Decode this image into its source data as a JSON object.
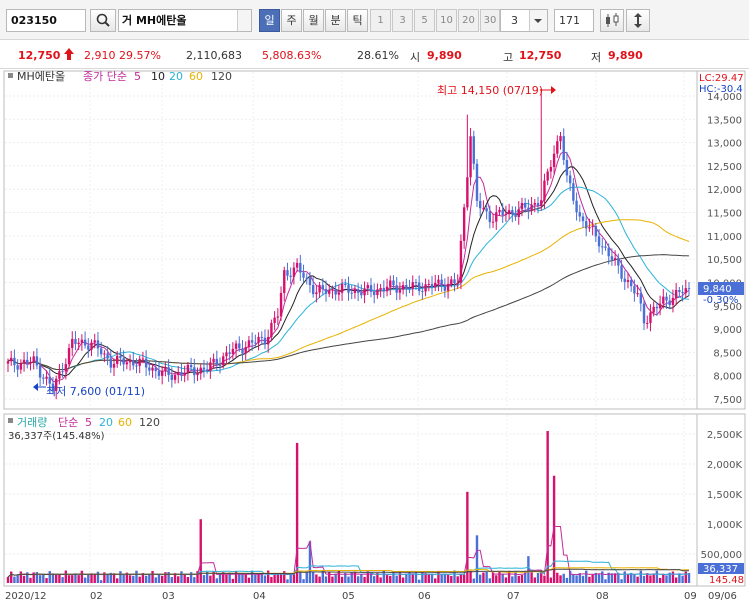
{
  "toolbar": {
    "code": "023150",
    "name": "거 MH에탄올",
    "periods": [
      "일",
      "주",
      "월",
      "분",
      "틱"
    ],
    "active_period": "일",
    "minutes": [
      "1",
      "3",
      "5",
      "10",
      "20",
      "30"
    ],
    "count_select": "3",
    "bars": "171"
  },
  "quote": {
    "price": "12,750",
    "change": "2,910",
    "change_rate": "29.57%",
    "volume": "2,110,683",
    "volume_rate": "5,808.63%",
    "turnover": "28.61%",
    "open_label": "시",
    "open": "9,890",
    "high_label": "고",
    "high": "12,750",
    "low_label": "저",
    "low": "9,890"
  },
  "price_panel": {
    "legend_name": "MH에탄올",
    "legend_ma": "종가 단순",
    "ma_periods": [
      "5",
      "10",
      "20",
      "60",
      "120"
    ],
    "lc": "LC:29.47",
    "hc": "HC:-30.4",
    "current_price_tag": "9,840",
    "current_change_tag": "-0.30%",
    "high_annotation": "최고 14,150 (07/19)",
    "low_annotation": "최저 7,600 (01/11)",
    "y_ticks": [
      "14,000",
      "13,500",
      "13,000",
      "12,500",
      "12,000",
      "11,500",
      "11,000",
      "10,500",
      "10,000",
      "9,500",
      "9,000",
      "8,500",
      "8,000",
      "7,500"
    ]
  },
  "volume_panel": {
    "legend_name": "거래량",
    "legend_ma": "단순",
    "ma_periods": [
      "5",
      "20",
      "60",
      "120"
    ],
    "stat": "36,337주(145.48%)",
    "current_volume_tag": "36,337",
    "current_rate_tag": "145.48",
    "y_ticks": [
      "2,500K",
      "2,000K",
      "1,500K",
      "1,000K",
      "500,000"
    ]
  },
  "x_axis": {
    "labels": [
      "2020/12",
      "02",
      "03",
      "04",
      "05",
      "06",
      "07",
      "08",
      "09",
      "09/06"
    ]
  },
  "colors": {
    "up": "#d6116d",
    "down": "#4a6fd6",
    "ma5": "#c22b9a",
    "ma10": "#222222",
    "ma20": "#2bb3d8",
    "ma60": "#e9b200",
    "ma120": "#444444"
  }
}
